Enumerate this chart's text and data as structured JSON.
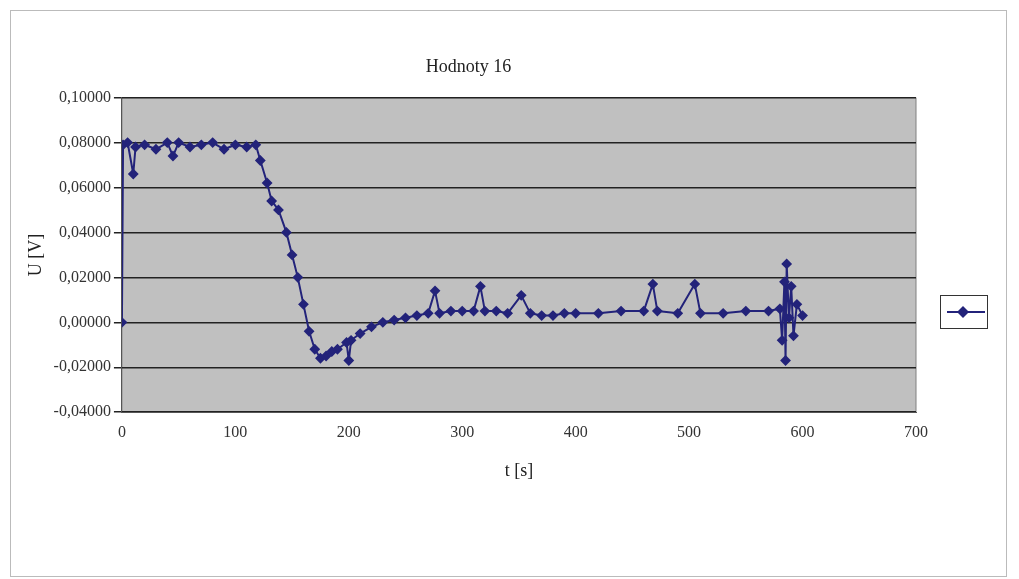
{
  "chart_data": {
    "type": "line",
    "title": "Hodnoty 16",
    "xlabel": "t [s]",
    "ylabel": "U [V]",
    "xlim": [
      0,
      700
    ],
    "xticks": [
      0,
      100,
      200,
      300,
      400,
      500,
      600,
      700
    ],
    "ylim": [
      -0.04,
      0.1
    ],
    "yticks": [
      {
        "value": -0.04,
        "label": "-0,04000"
      },
      {
        "value": -0.02,
        "label": "-0,02000"
      },
      {
        "value": 0,
        "label": "0,00000"
      },
      {
        "value": 0.02,
        "label": "0,02000"
      },
      {
        "value": 0.04,
        "label": "0,04000"
      },
      {
        "value": 0.06,
        "label": "0,06000"
      },
      {
        "value": 0.08,
        "label": "0,08000"
      },
      {
        "value": 0.1,
        "label": "0,10000"
      }
    ],
    "grid": "y",
    "marker": "diamond",
    "line_style": "solid",
    "series": [
      {
        "color": "#23237a",
        "x": [
          0,
          1,
          5,
          10,
          12,
          20,
          30,
          40,
          45,
          50,
          60,
          70,
          80,
          90,
          100,
          110,
          118,
          122,
          128,
          132,
          138,
          145,
          150,
          155,
          160,
          165,
          170,
          175,
          180,
          185,
          190,
          198,
          200,
          202,
          210,
          220,
          230,
          240,
          250,
          260,
          270,
          276,
          280,
          290,
          300,
          310,
          316,
          320,
          330,
          340,
          352,
          360,
          370,
          380,
          390,
          400,
          420,
          440,
          460,
          468,
          472,
          490,
          505,
          510,
          530,
          550,
          570,
          580,
          582,
          584,
          585,
          586,
          588,
          590,
          592,
          595,
          600
        ],
        "values": [
          0,
          0.079,
          0.08,
          0.066,
          0.078,
          0.079,
          0.077,
          0.08,
          0.074,
          0.08,
          0.078,
          0.079,
          0.08,
          0.077,
          0.079,
          0.078,
          0.079,
          0.072,
          0.062,
          0.054,
          0.05,
          0.04,
          0.03,
          0.02,
          0.008,
          -0.004,
          -0.012,
          -0.016,
          -0.015,
          -0.013,
          -0.012,
          -0.009,
          -0.017,
          -0.008,
          -0.005,
          -0.002,
          0,
          0.001,
          0.002,
          0.003,
          0.004,
          0.014,
          0.004,
          0.005,
          0.005,
          0.005,
          0.016,
          0.005,
          0.005,
          0.004,
          0.012,
          0.004,
          0.003,
          0.003,
          0.004,
          0.004,
          0.004,
          0.005,
          0.005,
          0.017,
          0.005,
          0.004,
          0.017,
          0.004,
          0.004,
          0.005,
          0.005,
          0.006,
          -0.008,
          0.018,
          -0.017,
          0.026,
          0.002,
          0.016,
          -0.006,
          0.008,
          0.003
        ]
      }
    ]
  }
}
